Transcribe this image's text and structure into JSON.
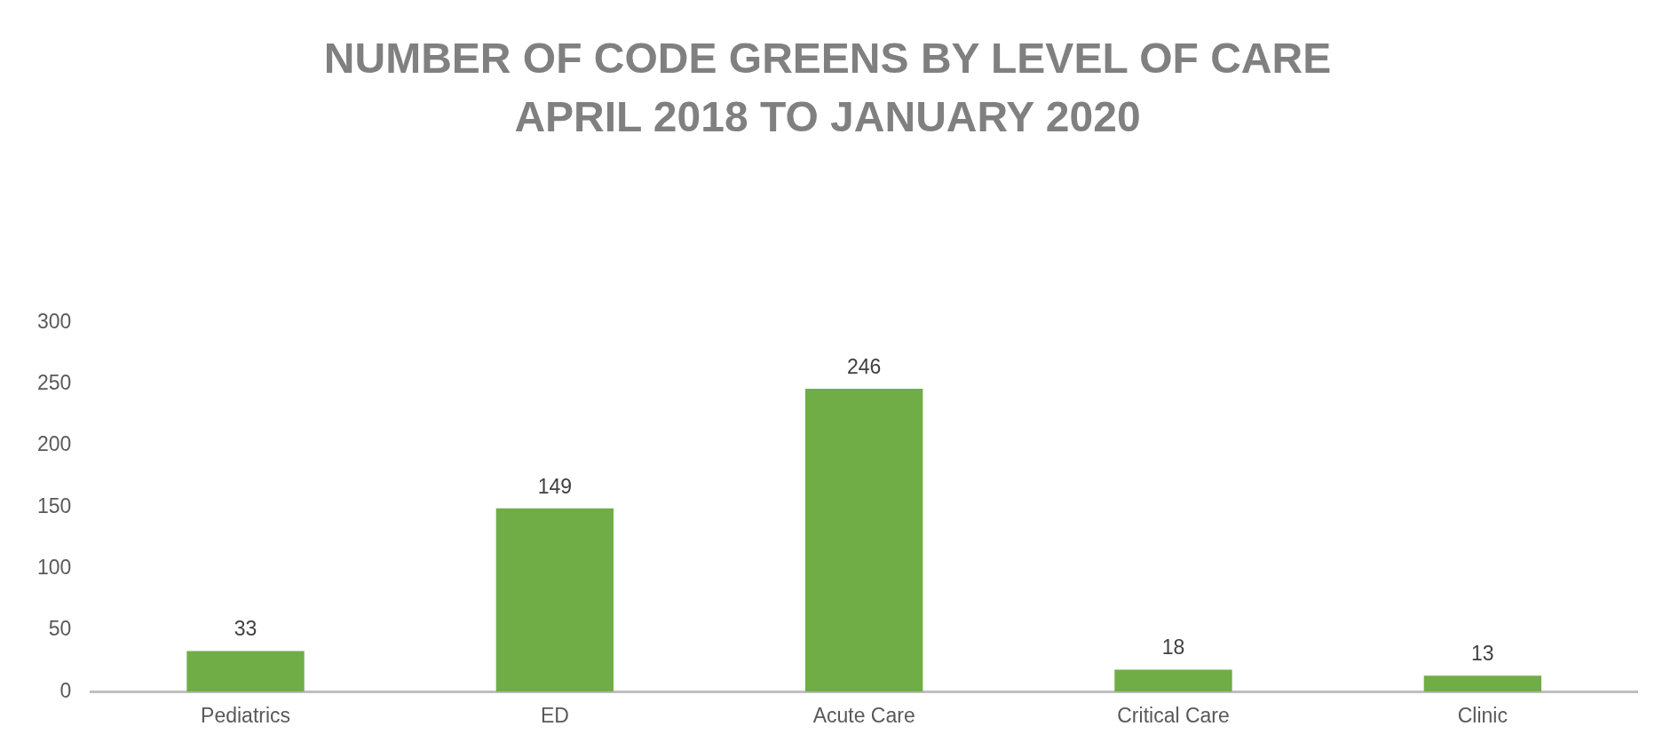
{
  "chart_data": {
    "type": "bar",
    "title": "NUMBER OF CODE GREENS BY LEVEL OF CARE",
    "subtitle": "APRIL 2018 TO JANUARY 2020",
    "categories": [
      "Pediatrics",
      "ED",
      "Acute Care",
      "Critical Care",
      "Clinic"
    ],
    "values": [
      33,
      149,
      246,
      18,
      13
    ],
    "color": "#70ad47",
    "ylim": [
      0,
      300
    ],
    "yticks": [
      0,
      50,
      100,
      150,
      200,
      250,
      300
    ],
    "grid": false,
    "legend": false,
    "data_labels": true
  }
}
